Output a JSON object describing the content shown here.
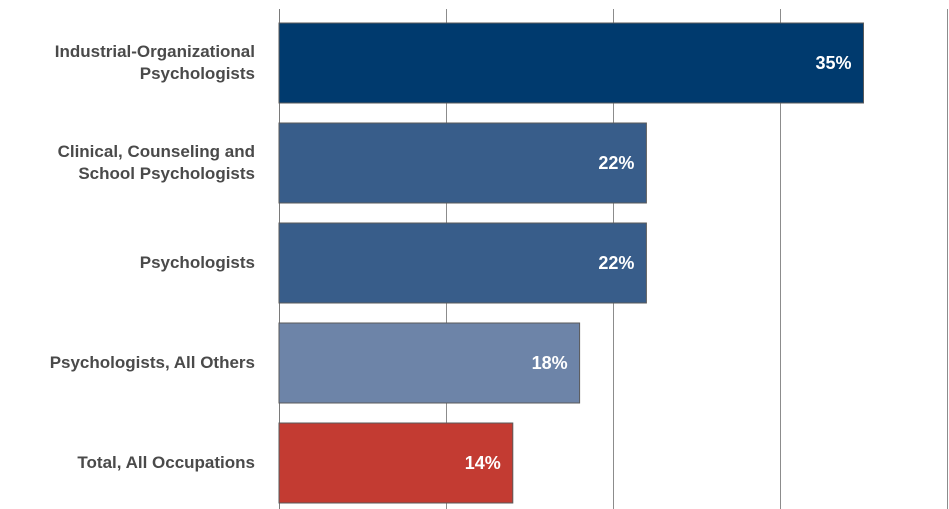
{
  "chart_data": {
    "type": "bar",
    "orientation": "horizontal",
    "title": "",
    "xlabel": "",
    "ylabel": "",
    "categories": [
      [
        "Industrial-Organizational",
        "Psychologists"
      ],
      [
        "Clinical, Counseling and",
        "School Psychologists"
      ],
      [
        "Psychologists"
      ],
      [
        "Psychologists, All Others"
      ],
      [
        "Total, All Occupations"
      ]
    ],
    "values": [
      35,
      22,
      22,
      18,
      14
    ],
    "value_labels": [
      "35%",
      "22%",
      "22%",
      "18%",
      "14%"
    ],
    "bar_colors": [
      "#003a6e",
      "#385d8a",
      "#385d8a",
      "#6d84a8",
      "#c33b32"
    ],
    "xlim": [
      0,
      40
    ],
    "gridlines": [
      0,
      10,
      20,
      30,
      40
    ],
    "grid": true,
    "legend": "none"
  }
}
